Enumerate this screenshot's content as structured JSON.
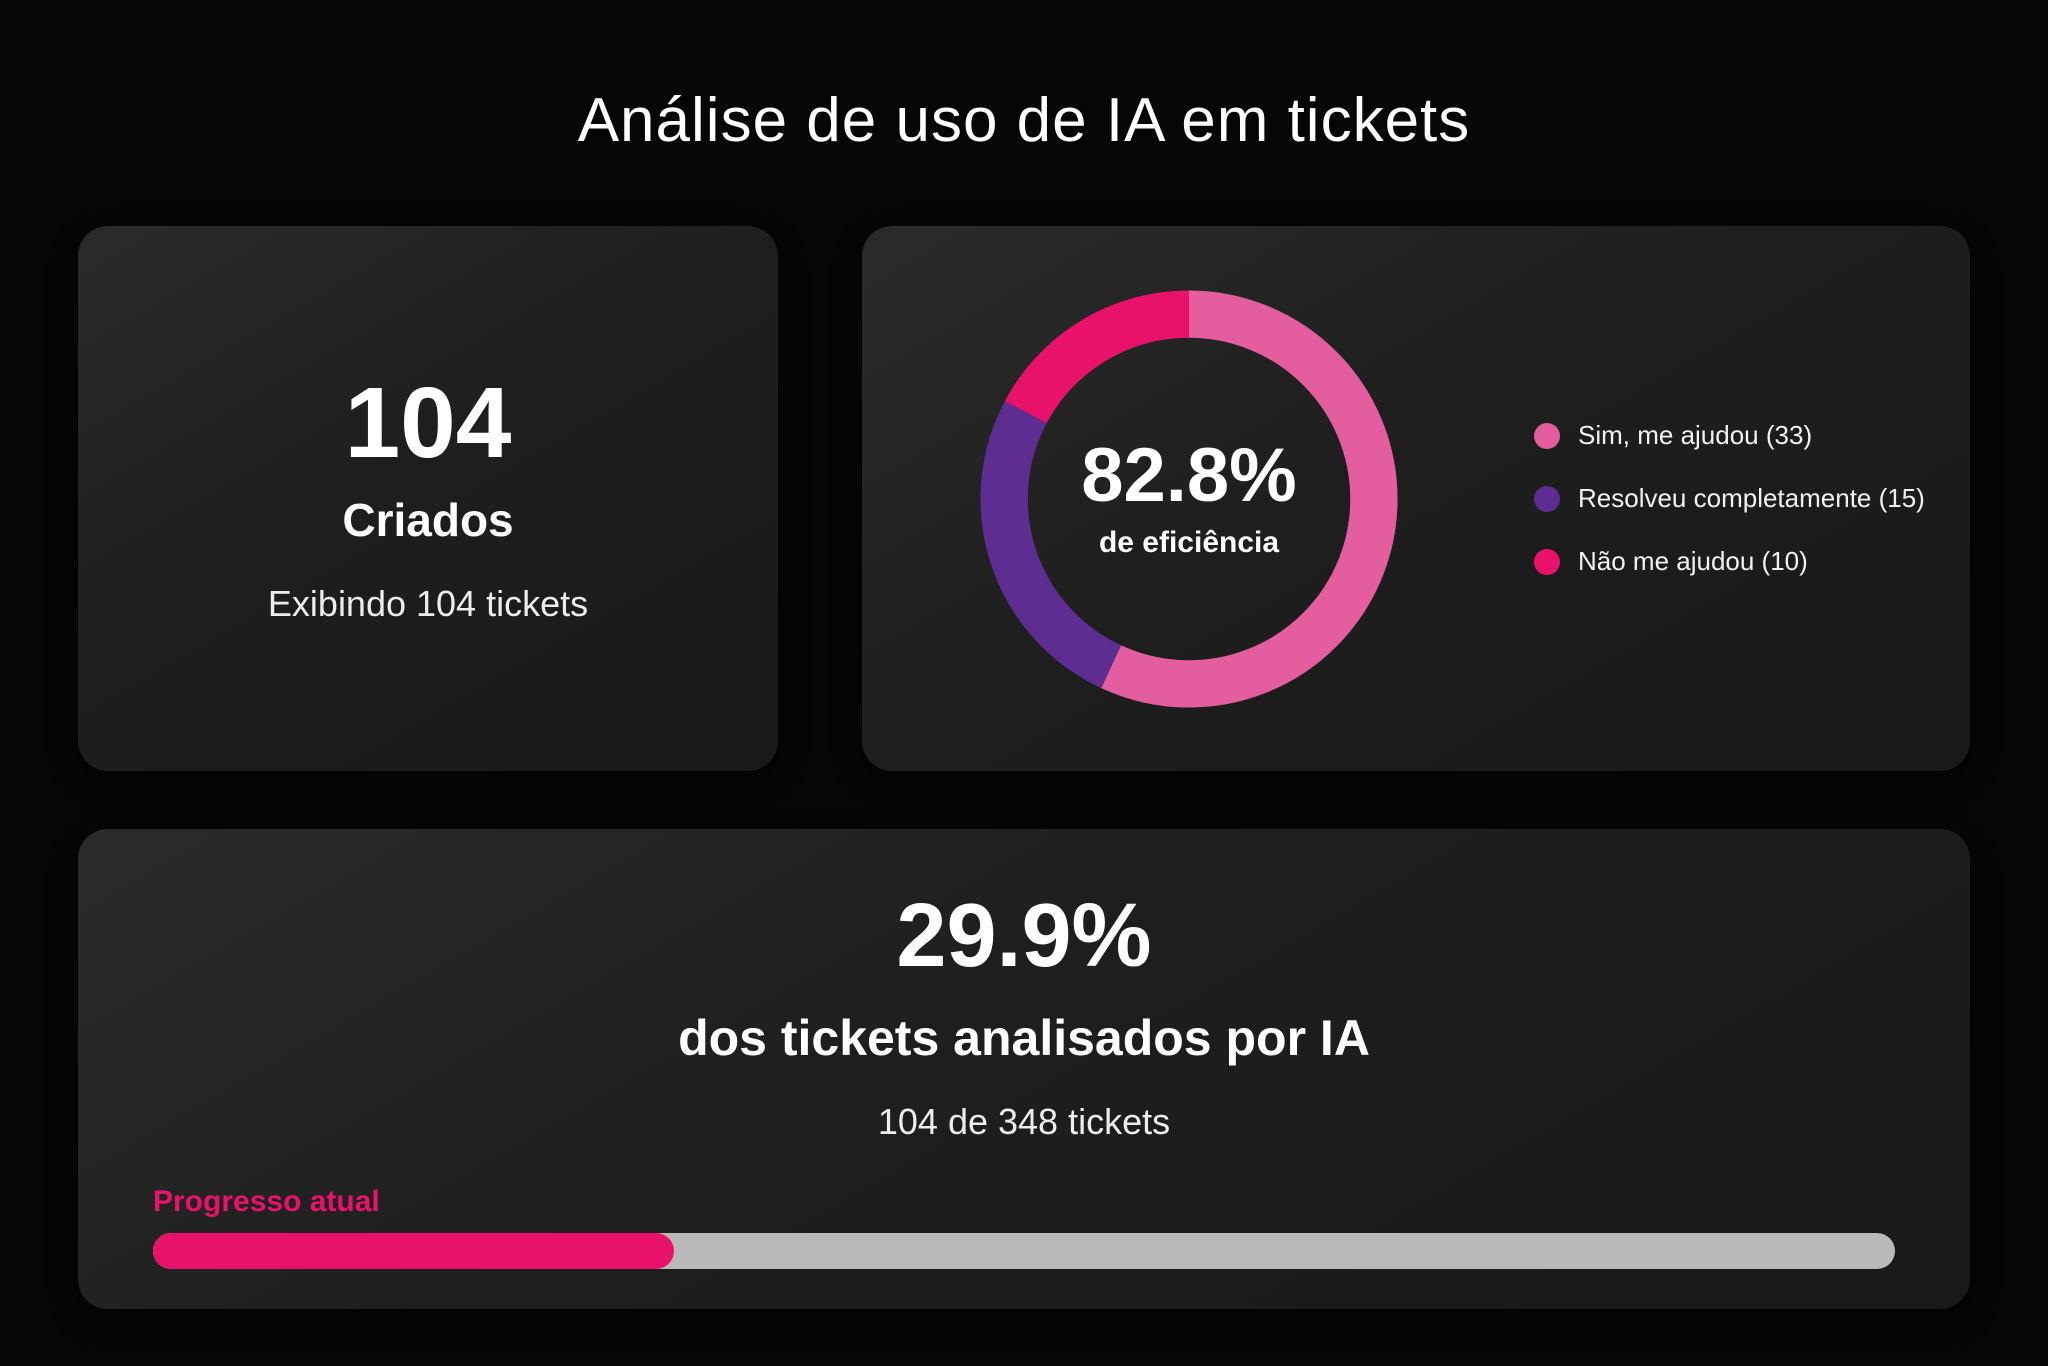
{
  "page": {
    "title": "Análise de uso de IA em tickets",
    "background": "#060606"
  },
  "colors": {
    "magenta": "#e9126b",
    "pink": "#e45d9f",
    "purple": "#5e2d91",
    "track_gray": "#b9b9b9",
    "card_bg": "#1e1e1e",
    "text_white": "#ffffff"
  },
  "created_card": {
    "value": "104",
    "label": "Criados",
    "subtext": "Exibindo 104 tickets"
  },
  "efficiency_card": {
    "center_value": "82.8%",
    "center_label": "de eficiência",
    "legend": [
      {
        "label": "Sim, me ajudou (33)",
        "color": "#e45d9f"
      },
      {
        "label": "Resolveu completamente (15)",
        "color": "#5e2d91"
      },
      {
        "label": "Não me ajudou (10)",
        "color": "#e9126b"
      }
    ]
  },
  "progress_card": {
    "value": "29.9%",
    "label": "dos tickets analisados por IA",
    "subtext": "104 de 348 tickets",
    "progress_label": "Progresso atual",
    "progress_percent": 29.9
  },
  "chart_data": [
    {
      "type": "pie",
      "subtype": "donut",
      "title": "82.8% de eficiência",
      "categories": [
        "Sim, me ajudou",
        "Resolveu completamente",
        "Não me ajudou"
      ],
      "values": [
        33,
        15,
        10
      ],
      "colors": [
        "#e45d9f",
        "#5e2d91",
        "#e9126b"
      ],
      "center_value": "82.8%",
      "center_label": "de eficiência",
      "legend_position": "right",
      "legend_labels": [
        "Sim, me ajudou (33)",
        "Resolveu completamente (15)",
        "Não me ajudou (10)"
      ],
      "start_angle_deg": -90,
      "direction": "clockwise"
    },
    {
      "type": "bar",
      "subtype": "progress",
      "title": "Progresso atual",
      "categories": [
        "dos tickets analisados por IA"
      ],
      "values": [
        29.9
      ],
      "max": 100,
      "annotation": "104 de 348 tickets",
      "numerator": 104,
      "denominator": 348,
      "fill_color": "#e9126b",
      "track_color": "#b9b9b9"
    }
  ]
}
